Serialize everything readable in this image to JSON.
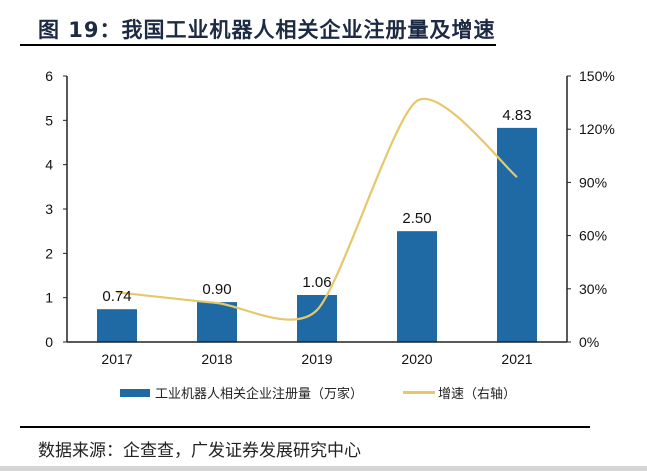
{
  "title": "图 19：我国工业机器人相关企业注册量及增速",
  "source": "数据来源：企查查，广发证券发展研究中心",
  "chart_data": {
    "type": "bar+line",
    "categories": [
      "2017",
      "2018",
      "2019",
      "2020",
      "2021"
    ],
    "series": [
      {
        "name": "工业机器人相关企业注册量（万家）",
        "type": "bar",
        "axis": "left",
        "values": [
          0.74,
          0.9,
          1.06,
          2.5,
          4.83
        ],
        "labels": [
          "0.74",
          "0.90",
          "1.06",
          "2.50",
          "4.83"
        ],
        "color": "#1f6aa5"
      },
      {
        "name": "增速（右轴）",
        "type": "line",
        "axis": "right",
        "values": [
          28,
          22,
          18,
          136,
          93
        ],
        "color": "#e5c86a"
      }
    ],
    "y_left": {
      "range": [
        0,
        6
      ],
      "ticks": [
        "0",
        "1",
        "2",
        "3",
        "4",
        "5",
        "6"
      ]
    },
    "y_right": {
      "range": [
        0,
        150
      ],
      "ticks": [
        "0%",
        "30%",
        "60%",
        "90%",
        "120%",
        "150%"
      ]
    },
    "grid": false,
    "legend": "bottom"
  }
}
